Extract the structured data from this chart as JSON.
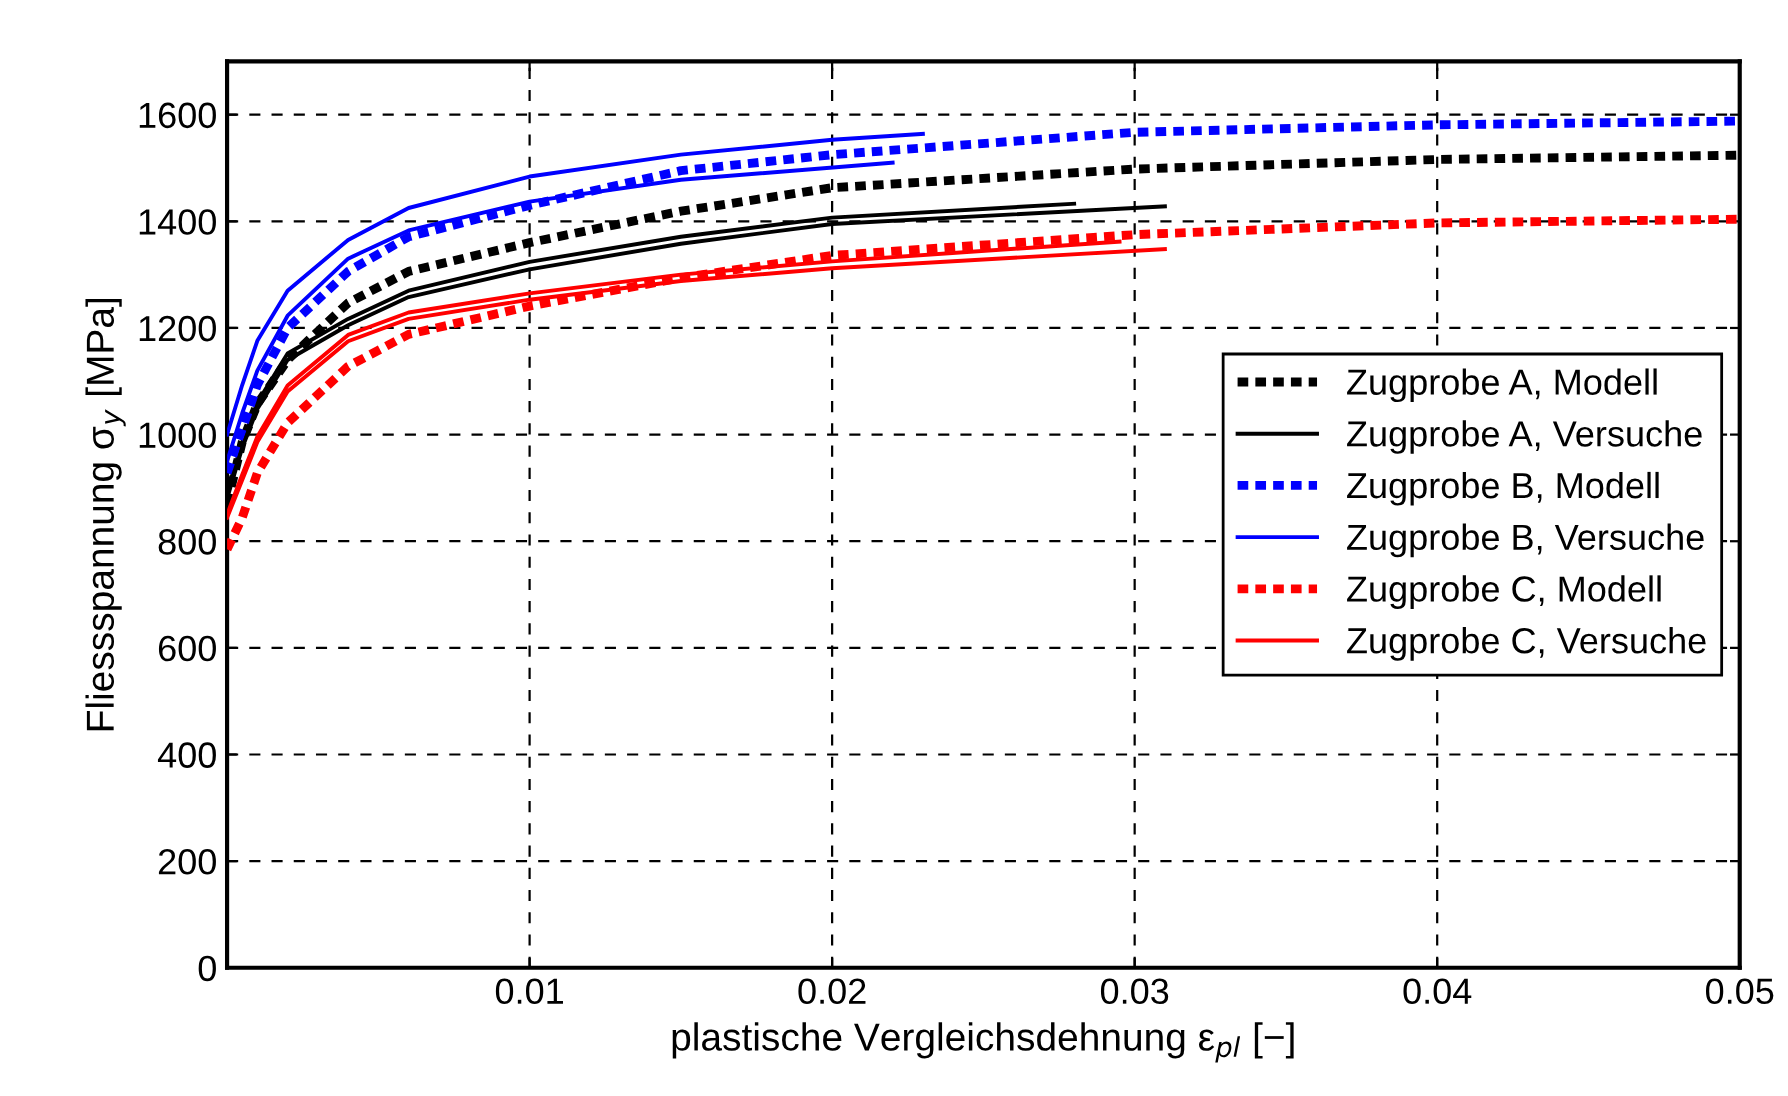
{
  "chart_data": {
    "type": "line",
    "xlabel": "plastische Vergleichsdehnung ε$_{pl}$ [−]",
    "ylabel": "Fliessspannung σ$_{y}$ [MPa]",
    "xlim": [
      0,
      0.05
    ],
    "xticks": [
      0.01,
      0.02,
      0.03,
      0.04,
      0.05
    ],
    "ylim": [
      0,
      1700
    ],
    "yticks": [
      0,
      200,
      400,
      600,
      800,
      1000,
      1200,
      1400,
      1600
    ],
    "grid": true,
    "legend": "right",
    "marker": "none",
    "series": [
      {
        "name": "Zugprobe A, Modell",
        "color": "#000000",
        "line_style": "dashed",
        "x": [
          0,
          0.0005,
          0.001,
          0.002,
          0.004,
          0.006,
          0.01,
          0.015,
          0.02,
          0.03,
          0.04,
          0.05
        ],
        "values": [
          870,
          986,
          1057,
          1140,
          1247,
          1306,
          1360,
          1419,
          1463,
          1498,
          1516,
          1524
        ]
      },
      {
        "name": "Zugprobe A, Versuche",
        "color": "#000000",
        "line_style": "solid",
        "x": [
          0,
          0.0005,
          0.001,
          0.002,
          0.004,
          0.006,
          0.01,
          0.015,
          0.02,
          0.028
        ],
        "values": [
          892,
          986,
          1060,
          1152,
          1217,
          1270,
          1324,
          1371,
          1407,
          1433
        ]
      },
      {
        "name": "Zugprobe B, Modell",
        "color": "#0000ff",
        "line_style": "dashed",
        "x": [
          0,
          0.0005,
          0.001,
          0.002,
          0.004,
          0.006,
          0.01,
          0.015,
          0.02,
          0.03,
          0.04,
          0.05
        ],
        "values": [
          928,
          1010,
          1093,
          1200,
          1306,
          1371,
          1430,
          1495,
          1525,
          1567,
          1581,
          1588
        ]
      },
      {
        "name": "Zugprobe B, Versuche",
        "color": "#0000ff",
        "line_style": "solid",
        "x": [
          0,
          0.0005,
          0.001,
          0.002,
          0.004,
          0.006,
          0.01,
          0.015,
          0.02,
          0.023
        ],
        "values": [
          1000,
          1093,
          1176,
          1270,
          1365,
          1425,
          1484,
          1525,
          1553,
          1564
        ]
      },
      {
        "name": "Zugprobe C, Modell",
        "color": "#ff0000",
        "line_style": "dashed",
        "x": [
          0,
          0.0005,
          0.001,
          0.002,
          0.004,
          0.006,
          0.01,
          0.015,
          0.02,
          0.03,
          0.04,
          0.05
        ],
        "values": [
          785,
          844,
          928,
          1022,
          1128,
          1188,
          1241,
          1294,
          1336,
          1375,
          1397,
          1404
        ]
      },
      {
        "name": "Zugprobe C, Versuche",
        "color": "#ff0000",
        "line_style": "solid",
        "x": [
          0,
          0.0005,
          0.001,
          0.002,
          0.004,
          0.006,
          0.01,
          0.015,
          0.02,
          0.031
        ],
        "values": [
          844,
          915,
          986,
          1081,
          1175,
          1217,
          1253,
          1288,
          1312,
          1348
        ]
      },
      {
        "color": "#000000",
        "line_style": "solid",
        "x": [
          0,
          0.0005,
          0.001,
          0.002,
          0.004,
          0.006,
          0.01,
          0.015,
          0.02,
          0.031
        ],
        "values": [
          880,
          975,
          1048,
          1140,
          1205,
          1258,
          1310,
          1358,
          1395,
          1428
        ]
      },
      {
        "color": "#0000ff",
        "line_style": "solid",
        "x": [
          0,
          0.0005,
          0.001,
          0.002,
          0.004,
          0.006,
          0.01,
          0.015,
          0.022
        ],
        "values": [
          950,
          1040,
          1120,
          1223,
          1330,
          1383,
          1437,
          1478,
          1510
        ]
      },
      {
        "color": "#ff0000",
        "line_style": "solid",
        "x": [
          0,
          0.0005,
          0.001,
          0.002,
          0.004,
          0.006,
          0.01,
          0.015,
          0.02,
          0.0295
        ],
        "values": [
          850,
          925,
          996,
          1092,
          1187,
          1229,
          1265,
          1300,
          1325,
          1362
        ]
      }
    ]
  }
}
